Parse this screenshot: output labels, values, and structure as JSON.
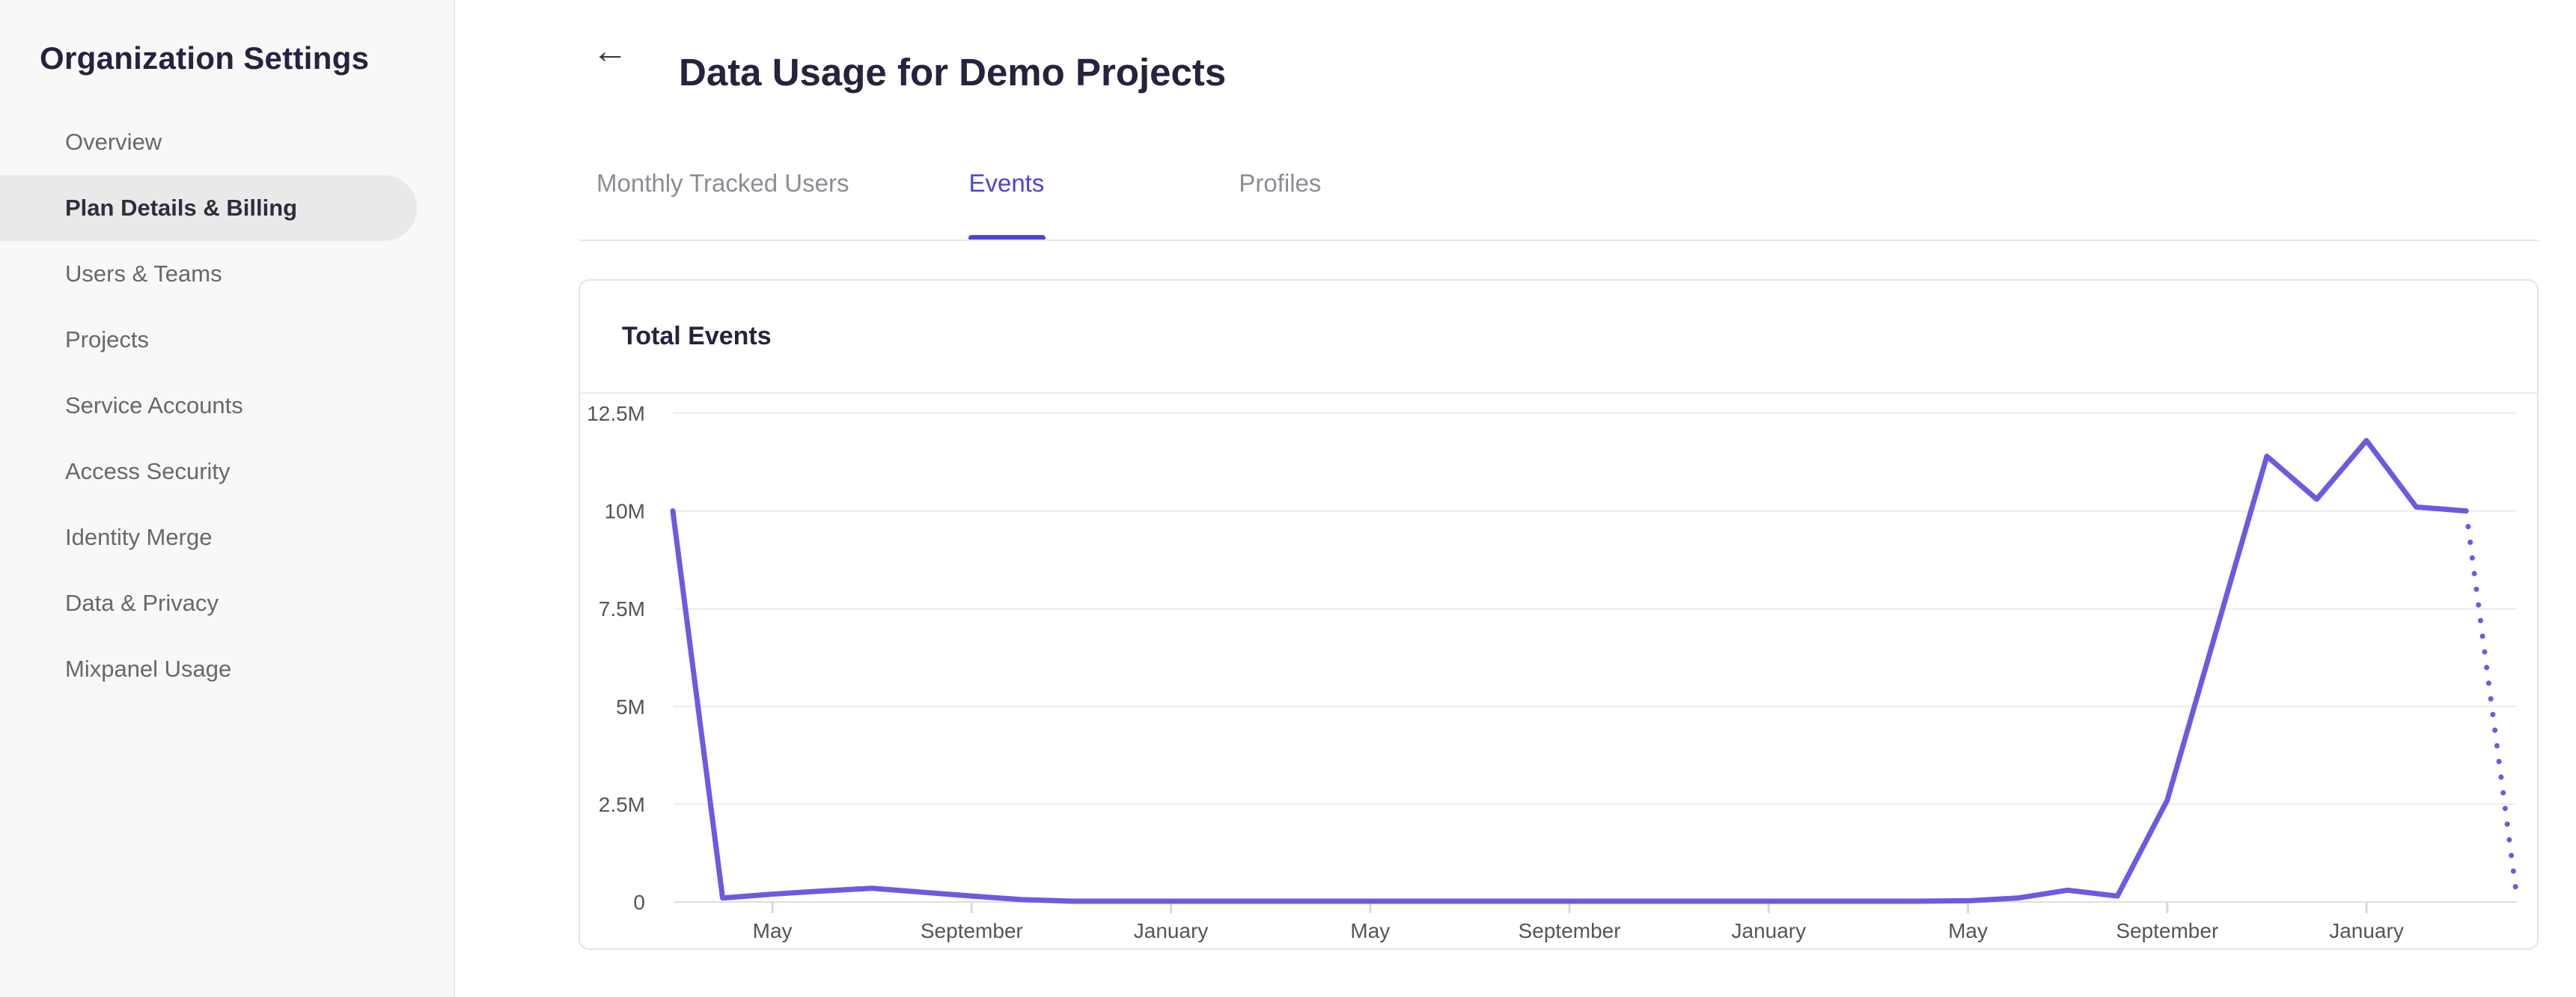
{
  "sidebar": {
    "title": "Organization Settings",
    "items": [
      {
        "label": "Overview",
        "active": false
      },
      {
        "label": "Plan Details & Billing",
        "active": true
      },
      {
        "label": "Users & Teams",
        "active": false
      },
      {
        "label": "Projects",
        "active": false
      },
      {
        "label": "Service Accounts",
        "active": false
      },
      {
        "label": "Access Security",
        "active": false
      },
      {
        "label": "Identity Merge",
        "active": false
      },
      {
        "label": "Data & Privacy",
        "active": false
      },
      {
        "label": "Mixpanel Usage",
        "active": false
      }
    ]
  },
  "header": {
    "back_icon_glyph": "←",
    "title": "Data Usage for Demo Projects"
  },
  "tabs": [
    {
      "label": "Monthly Tracked Users",
      "active": false
    },
    {
      "label": "Events",
      "active": true
    },
    {
      "label": "Profiles",
      "active": false
    }
  ],
  "card": {
    "title": "Total Events"
  },
  "colors": {
    "accent": "#4c43dd",
    "line": "#6a5be1",
    "active_pill": "#e9e9e9",
    "sidebar_bg": "#f8f8f8"
  },
  "chart_data": {
    "type": "line",
    "title": "Total Events",
    "series_name": "Total Events",
    "y_tick_labels": [
      "12.5M",
      "10M",
      "7.5M",
      "5M",
      "2.5M",
      "0"
    ],
    "y_tick_values_millions": [
      12.5,
      10,
      7.5,
      5,
      2.5,
      0
    ],
    "ylim_millions": [
      0,
      12.5
    ],
    "x_tick_labels": [
      "May",
      "September",
      "January",
      "May",
      "September",
      "January",
      "May",
      "September",
      "January"
    ],
    "x_tick_point_indices": [
      2,
      6,
      10,
      14,
      18,
      22,
      26,
      30,
      34
    ],
    "point_months": [
      "Mar",
      "Apr",
      "May",
      "Jun",
      "Jul",
      "Aug",
      "Sep",
      "Oct",
      "Nov",
      "Dec",
      "Jan",
      "Feb",
      "Mar",
      "Apr",
      "May",
      "Jun",
      "Jul",
      "Aug",
      "Sep",
      "Oct",
      "Nov",
      "Dec",
      "Jan",
      "Feb",
      "Mar",
      "Apr",
      "May",
      "Jun",
      "Jul",
      "Aug",
      "Sep",
      "Oct",
      "Nov",
      "Dec",
      "Jan",
      "Feb",
      "Mar",
      "Apr"
    ],
    "values_millions": [
      10.0,
      0.1,
      0.2,
      0.28,
      0.35,
      0.25,
      0.15,
      0.06,
      0.02,
      0.02,
      0.02,
      0.02,
      0.02,
      0.02,
      0.02,
      0.02,
      0.02,
      0.02,
      0.02,
      0.02,
      0.02,
      0.02,
      0.02,
      0.02,
      0.02,
      0.02,
      0.03,
      0.1,
      0.3,
      0.15,
      2.6,
      7.0,
      11.4,
      10.3,
      11.8,
      10.1,
      10.0,
      0.3
    ],
    "last_segment_projected_dotted": true,
    "grid": "horizontal-only",
    "legend": "none",
    "line_color": "#6a5be1"
  }
}
